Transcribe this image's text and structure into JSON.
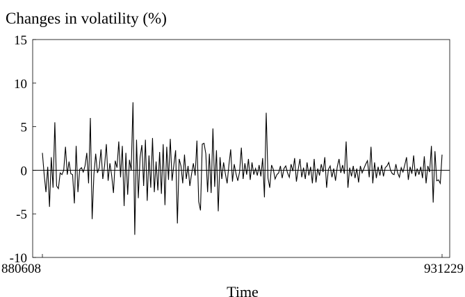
{
  "chart_data": {
    "type": "line",
    "title": "Changes in volatility (%)",
    "xlabel": "Time",
    "ylabel": "",
    "ylim": [
      -10,
      15
    ],
    "yticks": [
      15,
      10,
      5,
      0,
      -5,
      -10
    ],
    "ytick_labels": [
      "15",
      "10",
      "5",
      "0",
      "-5",
      "-10"
    ],
    "xtick_labels": [
      "880608",
      "931229"
    ],
    "zero_line": true,
    "grid": false,
    "legend": "none",
    "line_color": "#000000",
    "series": [
      {
        "values": [
          2.0,
          -0.5,
          -2.5,
          0.4,
          -4.2,
          1.5,
          -2.0,
          5.5,
          -1.8,
          -2.1,
          -0.3,
          -0.5,
          0.0,
          2.7,
          -0.5,
          1.0,
          -0.4,
          -0.5,
          -3.8,
          2.8,
          -2.5,
          0.1,
          0.3,
          -0.2,
          0.5,
          2.0,
          -1.5,
          6.0,
          -5.6,
          -0.5,
          1.9,
          -0.3,
          0.3,
          2.4,
          -1.0,
          0.5,
          3.0,
          -1.2,
          0.8,
          -0.6,
          -2.6,
          1.1,
          0.3,
          3.3,
          -0.8,
          2.8,
          -4.1,
          2.0,
          -2.8,
          1.2,
          0.0,
          7.8,
          -7.4,
          3.5,
          -3.2,
          1.5,
          2.9,
          -1.8,
          3.5,
          -3.5,
          1.7,
          -2.0,
          3.7,
          -2.5,
          1.0,
          -2.3,
          2.1,
          -2.7,
          3.0,
          -4.0,
          2.7,
          -1.1,
          3.6,
          -1.2,
          0.6,
          2.3,
          -6.1,
          1.3,
          0.5,
          -1.5,
          1.8,
          -1.0,
          0.5,
          -1.8,
          -0.4,
          0.8,
          -0.6,
          3.4,
          -3.6,
          -4.6,
          3.0,
          3.1,
          1.9,
          -2.5,
          1.9,
          -2.6,
          4.8,
          -1.9,
          2.3,
          -4.7,
          1.5,
          -1.0,
          0.9,
          -0.4,
          -1.5,
          0.6,
          2.4,
          -1.3,
          0.7,
          -0.4,
          -1.2,
          -0.2,
          2.6,
          -1.0,
          0.8,
          -0.5,
          1.3,
          -1.1,
          0.9,
          -0.5,
          0.2,
          -0.6,
          0.6,
          -0.7,
          1.4,
          -3.1,
          6.6,
          -0.9,
          -2.0,
          0.6,
          0.1,
          -1.0,
          -0.5,
          -0.3,
          0.5,
          -0.9,
          0.2,
          0.5,
          -0.3,
          -0.8,
          0.7,
          -0.1,
          1.4,
          -1.3,
          0.1,
          1.3,
          -0.8,
          0.3,
          -1.0,
          0.9,
          -0.6,
          0.4,
          -1.5,
          1.3,
          -1.4,
          0.2,
          -0.6,
          0.7,
          -0.2,
          1.5,
          -2.0,
          0.1,
          0.5,
          -0.8,
          0.2,
          -1.2,
          0.4,
          1.3,
          -0.3,
          0.6,
          -0.4,
          3.3,
          -2.0,
          0.3,
          -0.7,
          0.5,
          -0.9,
          0.2,
          -1.4,
          0.5,
          -0.3,
          0.2,
          0.7,
          1.1,
          -0.8,
          2.7,
          -1.5,
          0.9,
          -0.9,
          0.4,
          -0.6,
          0.6,
          -0.7,
          0.3,
          0.5,
          0.9,
          0.0,
          -0.4,
          -0.5,
          0.7,
          -0.3,
          -0.8,
          0.3,
          -0.2,
          0.6,
          1.5,
          -1.1,
          0.4,
          -0.4,
          1.7,
          -0.7,
          0.2,
          -0.5,
          0.4,
          -0.9,
          1.6,
          -1.5,
          0.5,
          -0.2,
          2.8,
          -3.7,
          2.2,
          -1.2,
          -1.1,
          -1.5,
          1.8
        ]
      }
    ]
  }
}
